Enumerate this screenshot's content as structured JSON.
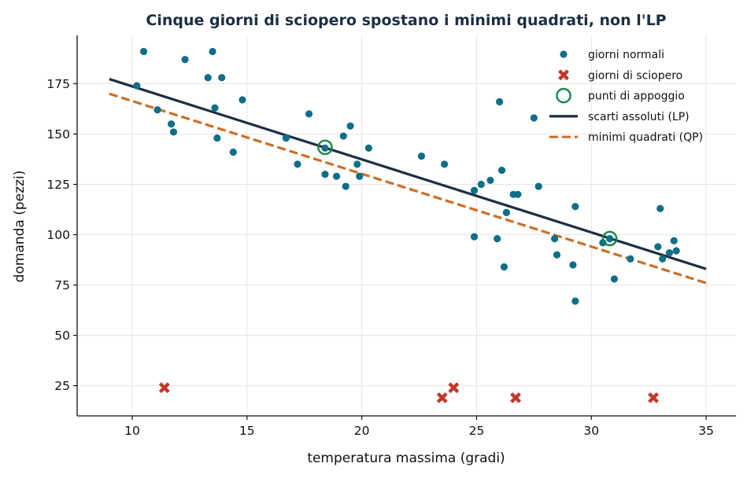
{
  "chart_data": {
    "type": "scatter",
    "title": "Cinque giorni di sciopero spostano i minimi quadrati, non l'LP",
    "xlabel": "temperatura massima (gradi)",
    "ylabel": "domanda (pezzi)",
    "xlim": [
      7.6,
      36.3
    ],
    "ylim": [
      10,
      199
    ],
    "xticks": [
      10,
      15,
      20,
      25,
      30,
      35
    ],
    "yticks": [
      25,
      50,
      75,
      100,
      125,
      150,
      175
    ],
    "grid": true,
    "legend_position": "top-right",
    "series": [
      {
        "name": "giorni normali",
        "kind": "points",
        "color": "#0e6f87",
        "marker": "circle",
        "points": [
          [
            10.2,
            174
          ],
          [
            10.5,
            191
          ],
          [
            11.1,
            162
          ],
          [
            11.7,
            155
          ],
          [
            11.8,
            151
          ],
          [
            12.3,
            187
          ],
          [
            13.3,
            178
          ],
          [
            13.5,
            191
          ],
          [
            13.6,
            163
          ],
          [
            13.7,
            148
          ],
          [
            13.9,
            178
          ],
          [
            14.4,
            141
          ],
          [
            14.8,
            167
          ],
          [
            16.7,
            148
          ],
          [
            17.2,
            135
          ],
          [
            17.7,
            160
          ],
          [
            18.4,
            143
          ],
          [
            18.4,
            130
          ],
          [
            18.9,
            129
          ],
          [
            19.2,
            149
          ],
          [
            19.3,
            124
          ],
          [
            19.5,
            154
          ],
          [
            19.8,
            135
          ],
          [
            19.9,
            129
          ],
          [
            20.3,
            143
          ],
          [
            22.6,
            139
          ],
          [
            23.6,
            135
          ],
          [
            24.9,
            122
          ],
          [
            24.9,
            99
          ],
          [
            25.2,
            125
          ],
          [
            25.6,
            127
          ],
          [
            25.9,
            98
          ],
          [
            26.0,
            166
          ],
          [
            26.1,
            132
          ],
          [
            26.2,
            84
          ],
          [
            26.3,
            111
          ],
          [
            26.6,
            120
          ],
          [
            26.8,
            120
          ],
          [
            27.5,
            158
          ],
          [
            27.7,
            124
          ],
          [
            28.4,
            98
          ],
          [
            28.5,
            90
          ],
          [
            29.2,
            85
          ],
          [
            29.3,
            114
          ],
          [
            29.3,
            67
          ],
          [
            30.5,
            96
          ],
          [
            30.8,
            98
          ],
          [
            31.0,
            78
          ],
          [
            31.7,
            88
          ],
          [
            32.9,
            94
          ],
          [
            33.0,
            113
          ],
          [
            33.1,
            88
          ],
          [
            33.4,
            91
          ],
          [
            33.6,
            97
          ],
          [
            33.7,
            92
          ]
        ]
      },
      {
        "name": "giorni di sciopero",
        "kind": "points",
        "color": "#c0392b",
        "marker": "x",
        "points": [
          [
            11.4,
            24
          ],
          [
            23.5,
            19
          ],
          [
            24.0,
            24
          ],
          [
            26.7,
            19
          ],
          [
            32.7,
            19
          ]
        ]
      },
      {
        "name": "punti di appoggio",
        "kind": "points",
        "color": "#1e8449",
        "marker": "open-circle",
        "points": [
          [
            18.4,
            143.4
          ],
          [
            30.8,
            98.1
          ]
        ]
      },
      {
        "name": "scarti assoluti (LP)",
        "kind": "line",
        "color": "#1b2f45",
        "style": "solid",
        "points": [
          [
            9.0,
            177.3
          ],
          [
            35.0,
            83.0
          ]
        ]
      },
      {
        "name": "minimi quadrati (QP)",
        "kind": "line",
        "color": "#cc6e24",
        "style": "dashed",
        "points": [
          [
            9.0,
            170.0
          ],
          [
            35.0,
            76.0
          ]
        ]
      }
    ]
  }
}
